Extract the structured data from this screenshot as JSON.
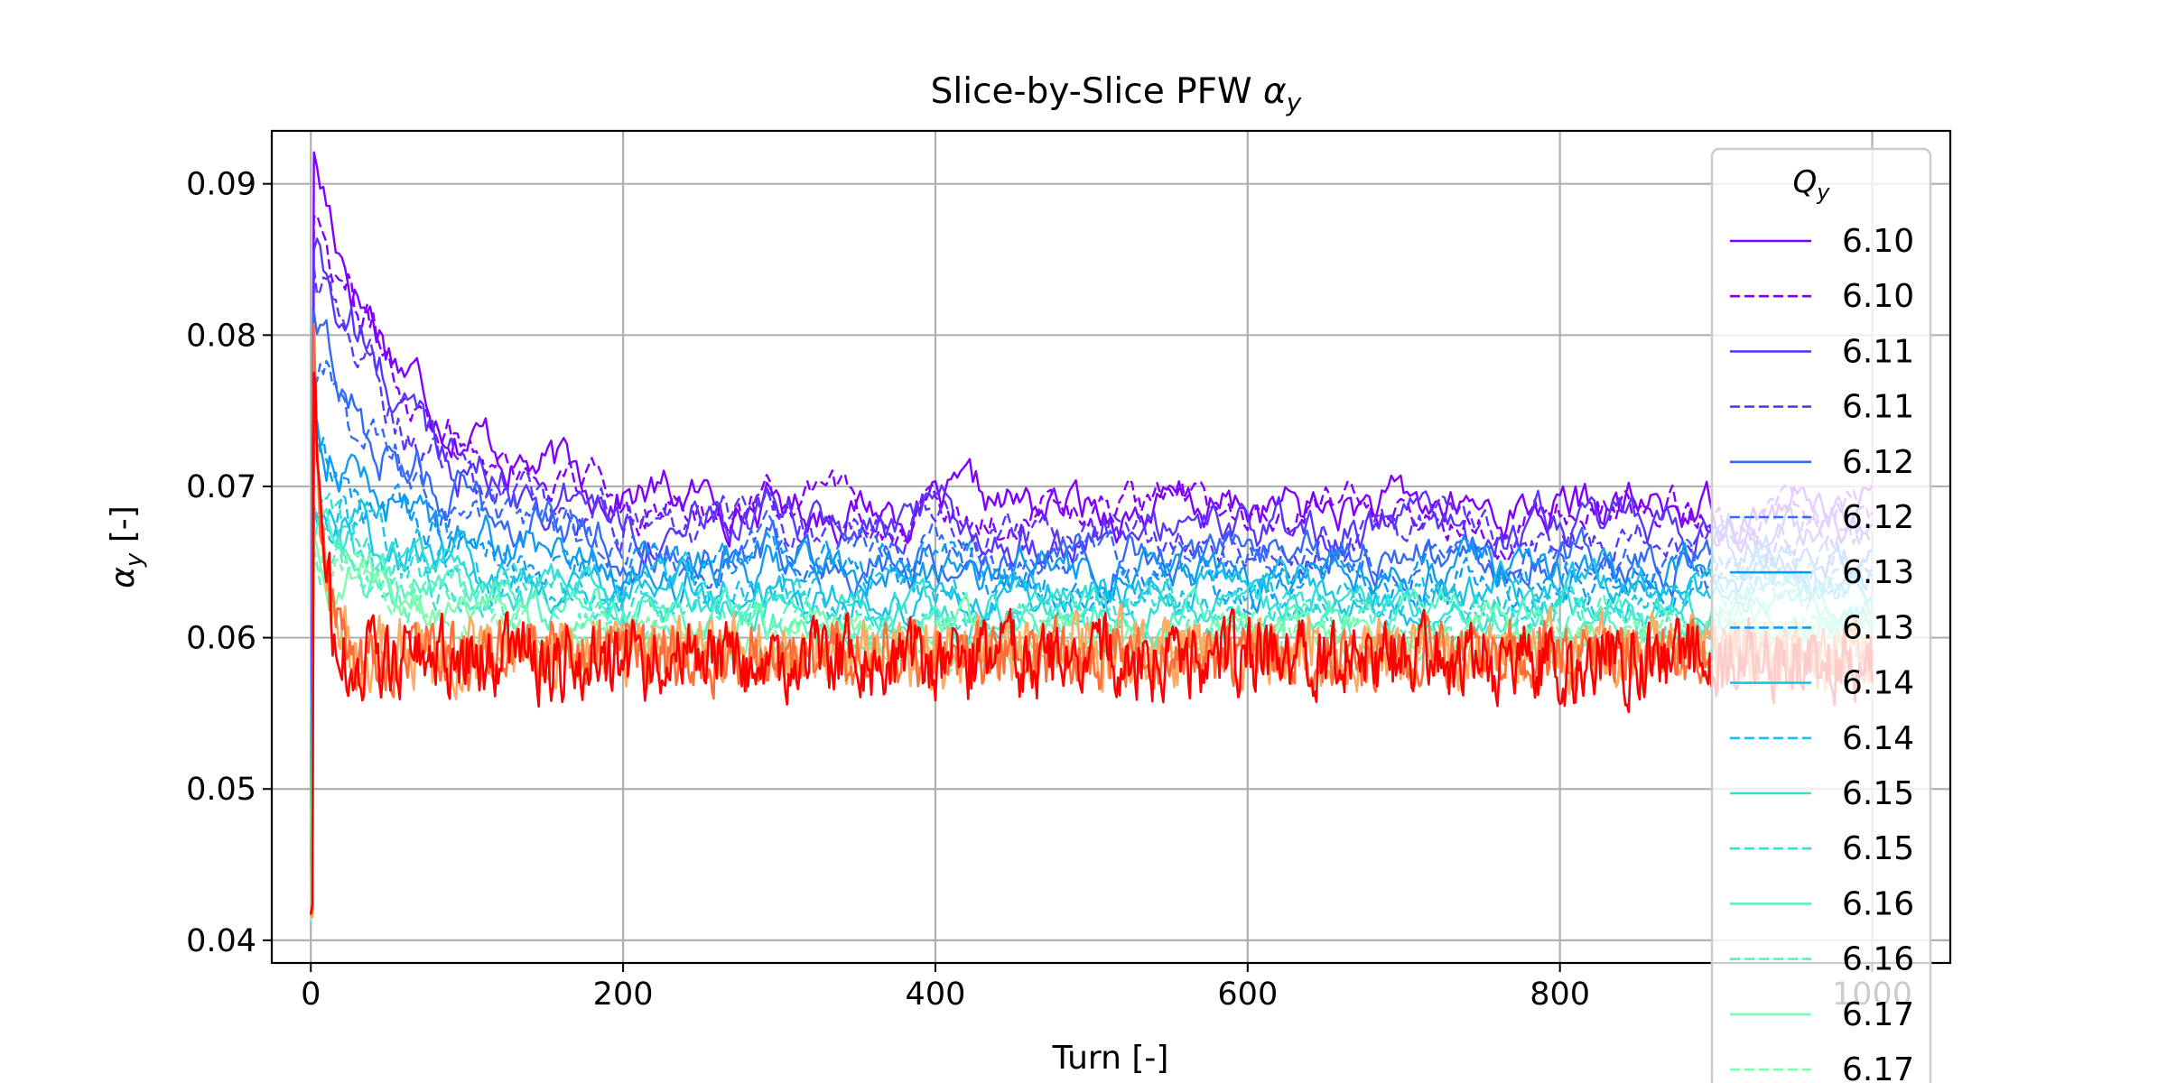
{
  "chart_data": {
    "type": "line",
    "title": "Slice-by-Slice PFW ",
    "title_symbol": "α",
    "title_subscript": "y",
    "xlabel": "Turn [-]",
    "ylabel_symbol": "α",
    "ylabel_subscript": "y",
    "ylabel_suffix": " [-]",
    "xlim": [
      -25,
      1050
    ],
    "ylim": [
      0.0385,
      0.0935
    ],
    "x_ticks": [
      0,
      200,
      400,
      600,
      800,
      1000
    ],
    "x_tick_labels": [
      "0",
      "200",
      "400",
      "600",
      "800",
      "1000"
    ],
    "y_ticks": [
      0.04,
      0.05,
      0.06,
      0.07,
      0.08,
      0.09
    ],
    "y_tick_labels": [
      "0.04",
      "0.05",
      "0.06",
      "0.07",
      "0.08",
      "0.09"
    ],
    "grid": true,
    "legend": {
      "title_symbol": "Q",
      "title_subscript": "y",
      "placement": "upper-right"
    },
    "series": [
      {
        "name": "6.10",
        "color": "#8000ff",
        "dash": "solid",
        "steady": 0.0685,
        "noise": 0.0018,
        "peak": 0.091
      },
      {
        "name": "6.10",
        "color": "#8000ff",
        "dash": "dashed",
        "steady": 0.0682,
        "noise": 0.0016,
        "peak": 0.089
      },
      {
        "name": "6.11",
        "color": "#5a36fd",
        "dash": "solid",
        "steady": 0.067,
        "noise": 0.0018,
        "peak": 0.086
      },
      {
        "name": "6.11",
        "color": "#5a36fd",
        "dash": "dashed",
        "steady": 0.0668,
        "noise": 0.0016,
        "peak": 0.084
      },
      {
        "name": "6.12",
        "color": "#346af9",
        "dash": "solid",
        "steady": 0.0655,
        "noise": 0.0018,
        "peak": 0.08
      },
      {
        "name": "6.12",
        "color": "#346af9",
        "dash": "dashed",
        "steady": 0.0652,
        "noise": 0.0016,
        "peak": 0.078
      },
      {
        "name": "6.13",
        "color": "#0d9bf3",
        "dash": "solid",
        "steady": 0.0642,
        "noise": 0.0017,
        "peak": 0.074
      },
      {
        "name": "6.13",
        "color": "#0d9bf3",
        "dash": "dashed",
        "steady": 0.064,
        "noise": 0.0016,
        "peak": 0.072
      },
      {
        "name": "6.14",
        "color": "#18c3e8",
        "dash": "solid",
        "steady": 0.063,
        "noise": 0.0016,
        "peak": 0.07
      },
      {
        "name": "6.14",
        "color": "#18c3e8",
        "dash": "dashed",
        "steady": 0.0628,
        "noise": 0.0015,
        "peak": 0.069
      },
      {
        "name": "6.15",
        "color": "#32e1d6",
        "dash": "solid",
        "steady": 0.062,
        "noise": 0.0015,
        "peak": 0.068
      },
      {
        "name": "6.15",
        "color": "#32e1d6",
        "dash": "dashed",
        "steady": 0.0618,
        "noise": 0.0015,
        "peak": 0.067
      },
      {
        "name": "6.16",
        "color": "#56f3c3",
        "dash": "solid",
        "steady": 0.061,
        "noise": 0.0015,
        "peak": 0.067
      },
      {
        "name": "6.16",
        "color": "#56f3c3",
        "dash": "dashed",
        "steady": 0.0608,
        "noise": 0.0015,
        "peak": 0.066
      },
      {
        "name": "6.17",
        "color": "#7cfcad",
        "dash": "solid",
        "steady": 0.06,
        "noise": 0.0015,
        "peak": 0.066
      },
      {
        "name": "6.17",
        "color": "#7cfcad",
        "dash": "dashed",
        "steady": 0.0598,
        "noise": 0.0015,
        "peak": 0.066
      },
      {
        "name": "",
        "color": "#ffaa60",
        "dash": "solid",
        "steady": 0.059,
        "noise": 0.0022,
        "peak": 0.077,
        "legend": false
      },
      {
        "name": "",
        "color": "#ff6e38",
        "dash": "solid",
        "steady": 0.0588,
        "noise": 0.0022,
        "peak": 0.078,
        "legend": false
      },
      {
        "name": "",
        "color": "#ff0000",
        "dash": "solid",
        "steady": 0.0585,
        "noise": 0.0025,
        "peak": 0.08,
        "legend": false
      }
    ]
  }
}
